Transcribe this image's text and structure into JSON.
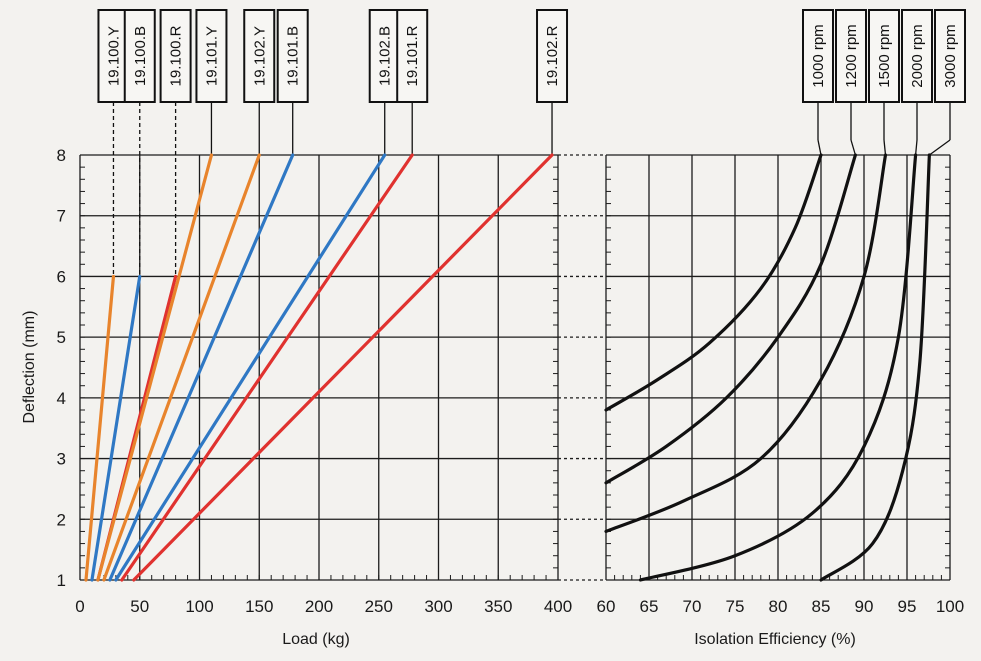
{
  "chart_data": [
    {
      "type": "line",
      "title": "",
      "xlabel": "Load (kg)",
      "ylabel": "Deflection (mm)",
      "xlim": [
        0,
        400
      ],
      "ylim": [
        1,
        8
      ],
      "x_ticks": [
        "0",
        "50",
        "100",
        "150",
        "200",
        "250",
        "300",
        "350",
        "400"
      ],
      "y_ticks": [
        "1",
        "2",
        "3",
        "4",
        "5",
        "6",
        "7",
        "8"
      ],
      "grid": true,
      "series": [
        {
          "name": "19.100.Y",
          "color": "#e8842c",
          "points": [
            [
              5,
              1
            ],
            [
              28,
              6
            ]
          ]
        },
        {
          "name": "19.100.B",
          "color": "#2f78c4",
          "points": [
            [
              10,
              1
            ],
            [
              50,
              6
            ]
          ]
        },
        {
          "name": "19.100.R",
          "color": "#e0322f",
          "points": [
            [
              15,
              1
            ],
            [
              80,
              6
            ]
          ]
        },
        {
          "name": "19.101.Y",
          "color": "#e8842c",
          "points": [
            [
              15,
              1
            ],
            [
              110,
              8
            ]
          ]
        },
        {
          "name": "19.102.Y",
          "color": "#e8842c",
          "points": [
            [
              20,
              1
            ],
            [
              150,
              8
            ]
          ]
        },
        {
          "name": "19.101.B",
          "color": "#2f78c4",
          "points": [
            [
              25,
              1
            ],
            [
              178,
              8
            ]
          ]
        },
        {
          "name": "19.102.B",
          "color": "#2f78c4",
          "points": [
            [
              30,
              1
            ],
            [
              255,
              8
            ]
          ]
        },
        {
          "name": "19.101.R",
          "color": "#e0322f",
          "points": [
            [
              35,
              1
            ],
            [
              278,
              8
            ]
          ]
        },
        {
          "name": "19.102.R",
          "color": "#e0322f",
          "points": [
            [
              45,
              1
            ],
            [
              395,
              8
            ]
          ]
        }
      ]
    },
    {
      "type": "line",
      "title": "",
      "xlabel": "Isolation Efficiency (%)",
      "ylabel": "",
      "xlim": [
        60,
        100
      ],
      "ylim": [
        1,
        8
      ],
      "x_ticks": [
        "60",
        "65",
        "70",
        "75",
        "80",
        "85",
        "90",
        "95",
        "100"
      ],
      "grid": true,
      "series": [
        {
          "name": "1000 rpm",
          "color": "#111111",
          "points": [
            [
              60,
              3.8
            ],
            [
              66,
              4.3
            ],
            [
              72,
              4.9
            ],
            [
              78,
              5.8
            ],
            [
              82,
              6.8
            ],
            [
              85,
              8.0
            ]
          ]
        },
        {
          "name": "1200 rpm",
          "color": "#111111",
          "points": [
            [
              60,
              2.6
            ],
            [
              67,
              3.2
            ],
            [
              74,
              4.0
            ],
            [
              80,
              5.0
            ],
            [
              85,
              6.2
            ],
            [
              89,
              8.0
            ]
          ]
        },
        {
          "name": "1500 rpm",
          "color": "#111111",
          "points": [
            [
              60,
              1.8
            ],
            [
              69,
              2.3
            ],
            [
              78,
              3.0
            ],
            [
              85,
              4.3
            ],
            [
              90,
              6.0
            ],
            [
              92.5,
              8.0
            ]
          ]
        },
        {
          "name": "2000 rpm",
          "color": "#111111",
          "points": [
            [
              64,
              1.0
            ],
            [
              75,
              1.4
            ],
            [
              84,
              2.1
            ],
            [
              90,
              3.2
            ],
            [
              94,
              5.0
            ],
            [
              96,
              8.0
            ]
          ]
        },
        {
          "name": "3000 rpm",
          "color": "#111111",
          "points": [
            [
              85,
              1.0
            ],
            [
              91,
              1.6
            ],
            [
              94.5,
              2.8
            ],
            [
              96.5,
              4.6
            ],
            [
              97.6,
              8.0
            ]
          ]
        }
      ]
    }
  ]
}
